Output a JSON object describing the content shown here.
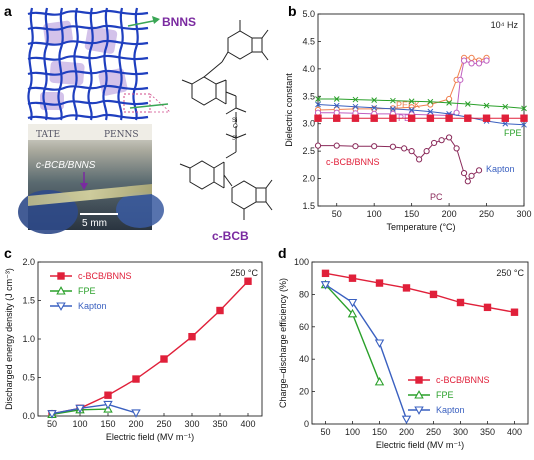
{
  "panel_letters": [
    "a",
    "b",
    "c",
    "d"
  ],
  "panel_a": {
    "bnns_label": "BNNS",
    "cbcb_label": "c-BCB",
    "photo_sample_label": "c-BCB/BNNS",
    "photo_header_left": "TATE",
    "photo_header_right": "PENNS",
    "scale_bar_label": "5 mm",
    "colors": {
      "mesh": "#1f3fbf",
      "accent": "#7a2aa0",
      "green_arrow": "#3aa655"
    }
  },
  "chart_data": [
    {
      "id": "b",
      "type": "line",
      "annotation": "10⁴ Hz",
      "xlabel": "Temperature (°C)",
      "ylabel": "Dielectric constant",
      "xlim": [
        25,
        300
      ],
      "ylim": [
        1.5,
        5.0
      ],
      "xticks": [
        50,
        100,
        150,
        200,
        250,
        300
      ],
      "yticks": [
        1.5,
        2.0,
        2.5,
        3.0,
        3.5,
        4.0,
        4.5,
        5.0
      ],
      "series": [
        {
          "name": "PEEK",
          "color": "#f08050",
          "marker": "o",
          "x": [
            25,
            50,
            75,
            100,
            125,
            150,
            175,
            200,
            210,
            220,
            230,
            240,
            250
          ],
          "y": [
            3.25,
            3.26,
            3.27,
            3.27,
            3.28,
            3.3,
            3.35,
            3.45,
            3.8,
            4.2,
            4.2,
            4.15,
            4.2
          ]
        },
        {
          "name": "PEI",
          "color": "#c060c0",
          "marker": "o",
          "x": [
            25,
            50,
            75,
            100,
            125,
            150,
            175,
            200,
            210,
            215,
            220,
            230,
            240,
            250
          ],
          "y": [
            3.2,
            3.2,
            3.19,
            3.18,
            3.18,
            3.17,
            3.16,
            3.15,
            3.2,
            3.8,
            4.15,
            4.1,
            4.1,
            4.15
          ]
        },
        {
          "name": "FPE",
          "color": "#2aa02a",
          "marker": "x",
          "x": [
            25,
            50,
            75,
            100,
            125,
            150,
            175,
            200,
            225,
            250,
            275,
            300
          ],
          "y": [
            3.45,
            3.45,
            3.44,
            3.43,
            3.42,
            3.41,
            3.4,
            3.38,
            3.36,
            3.33,
            3.31,
            3.28
          ]
        },
        {
          "name": "Kapton",
          "color": "#3a60c0",
          "marker": "x",
          "x": [
            25,
            50,
            75,
            100,
            125,
            150,
            175,
            200,
            225,
            250,
            275,
            300
          ],
          "y": [
            3.35,
            3.33,
            3.31,
            3.29,
            3.27,
            3.25,
            3.22,
            3.18,
            3.12,
            3.05,
            3.0,
            2.98
          ]
        },
        {
          "name": "c-BCB/BNNS",
          "color": "#e0203a",
          "marker": "s",
          "x": [
            25,
            50,
            75,
            100,
            125,
            150,
            175,
            200,
            225,
            250,
            275,
            300
          ],
          "y": [
            3.1,
            3.1,
            3.1,
            3.1,
            3.1,
            3.1,
            3.1,
            3.1,
            3.1,
            3.1,
            3.1,
            3.1
          ]
        },
        {
          "name": "PC",
          "color": "#8a2a5a",
          "marker": "o",
          "x": [
            25,
            50,
            75,
            100,
            125,
            140,
            150,
            160,
            170,
            180,
            190,
            200,
            210,
            220,
            225,
            230,
            240
          ],
          "y": [
            2.6,
            2.6,
            2.59,
            2.59,
            2.58,
            2.55,
            2.5,
            2.35,
            2.5,
            2.65,
            2.7,
            2.75,
            2.55,
            2.1,
            1.95,
            2.05,
            2.15
          ]
        }
      ]
    },
    {
      "id": "c",
      "type": "line",
      "annotation": "250 °C",
      "xlabel": "Electric field (MV m⁻¹)",
      "ylabel": "Discharged energy density (J cm⁻³)",
      "xlim": [
        25,
        425
      ],
      "ylim": [
        0,
        2.0
      ],
      "xticks": [
        50,
        100,
        150,
        200,
        250,
        300,
        350,
        400
      ],
      "yticks": [
        0.0,
        0.5,
        1.0,
        1.5,
        2.0
      ],
      "series": [
        {
          "name": "c-BCB/BNNS",
          "color": "#e0203a",
          "marker": "s",
          "x": [
            50,
            100,
            150,
            200,
            250,
            300,
            350,
            400
          ],
          "y": [
            0.03,
            0.1,
            0.27,
            0.48,
            0.74,
            1.03,
            1.37,
            1.75
          ]
        },
        {
          "name": "FPE",
          "color": "#2aa02a",
          "marker": "^",
          "x": [
            50,
            100,
            150
          ],
          "y": [
            0.02,
            0.08,
            0.09
          ]
        },
        {
          "name": "Kapton",
          "color": "#3a60c0",
          "marker": "v",
          "x": [
            50,
            100,
            150,
            200
          ],
          "y": [
            0.03,
            0.1,
            0.15,
            0.04
          ]
        }
      ]
    },
    {
      "id": "d",
      "type": "line",
      "annotation": "250 °C",
      "xlabel": "Electric field (MV m⁻¹)",
      "ylabel": "Charge–discharge efficiency (%)",
      "xlim": [
        25,
        425
      ],
      "ylim": [
        0,
        100
      ],
      "xticks": [
        50,
        100,
        150,
        200,
        250,
        300,
        350,
        400
      ],
      "yticks": [
        0,
        20,
        40,
        60,
        80,
        100
      ],
      "series": [
        {
          "name": "c-BCB/BNNS",
          "color": "#e0203a",
          "marker": "s",
          "x": [
            50,
            100,
            150,
            200,
            250,
            300,
            350,
            400
          ],
          "y": [
            93,
            90,
            87,
            84,
            80,
            75,
            72,
            69
          ]
        },
        {
          "name": "FPE",
          "color": "#2aa02a",
          "marker": "^",
          "x": [
            50,
            100,
            150
          ],
          "y": [
            86,
            68,
            26
          ]
        },
        {
          "name": "Kapton",
          "color": "#3a60c0",
          "marker": "v",
          "x": [
            50,
            100,
            150,
            200
          ],
          "y": [
            86,
            75,
            50,
            3
          ]
        }
      ]
    }
  ]
}
